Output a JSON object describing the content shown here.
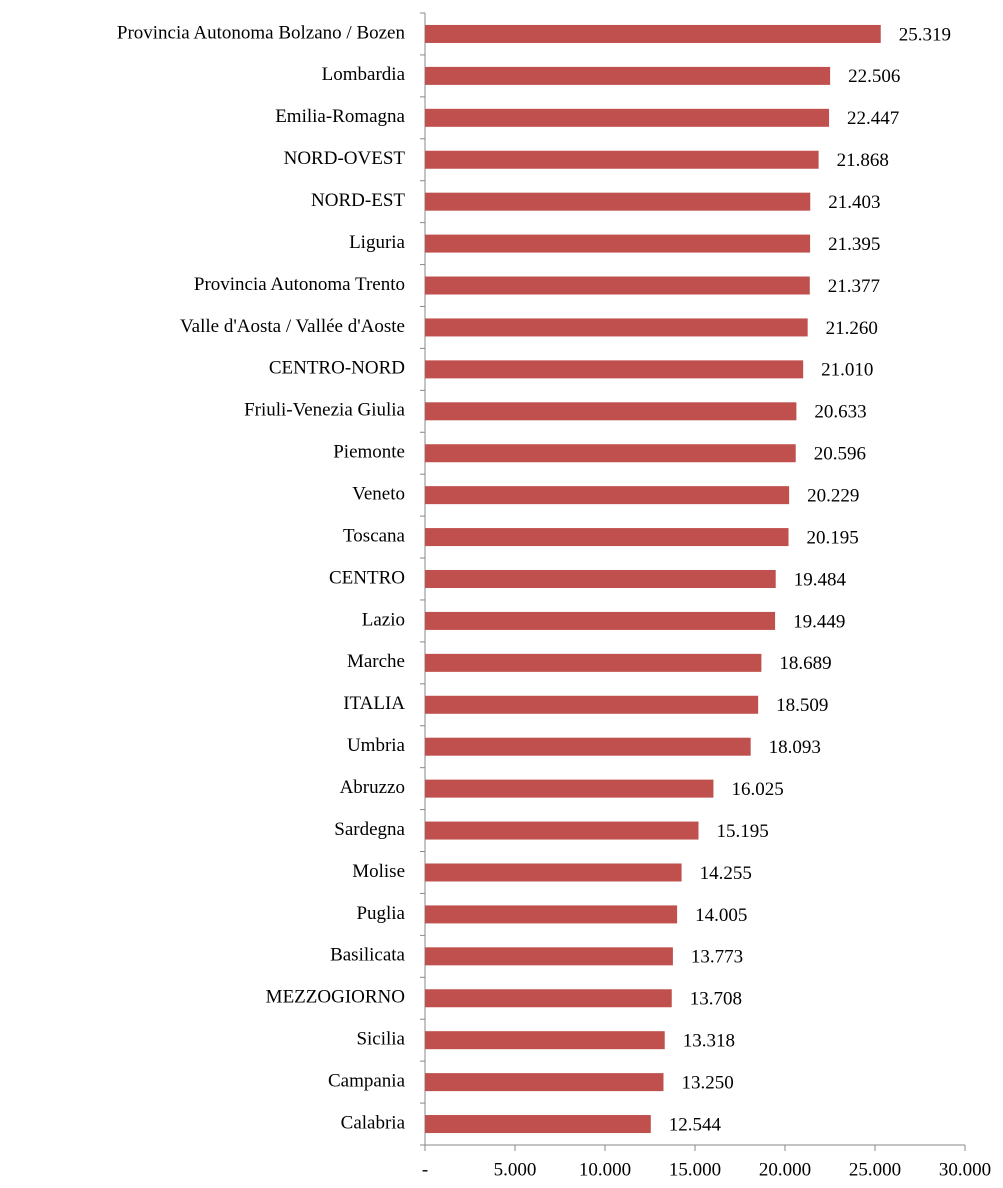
{
  "chart_data": {
    "type": "barh",
    "categories": [
      "Provincia Autonoma Bolzano / Bozen",
      "Lombardia",
      "Emilia-Romagna",
      "NORD-OVEST",
      "NORD-EST",
      "Liguria",
      "Provincia Autonoma Trento",
      "Valle d'Aosta / Vallée d'Aoste",
      "CENTRO-NORD",
      "Friuli-Venezia Giulia",
      "Piemonte",
      "Veneto",
      "Toscana",
      "CENTRO",
      "Lazio",
      "Marche",
      "ITALIA",
      "Umbria",
      "Abruzzo",
      "Sardegna",
      "Molise",
      "Puglia",
      "Basilicata",
      "MEZZOGIORNO",
      "Sicilia",
      "Campania",
      "Calabria"
    ],
    "values": [
      25319,
      22506,
      22447,
      21868,
      21403,
      21395,
      21377,
      21260,
      21010,
      20633,
      20596,
      20229,
      20195,
      19484,
      19449,
      18689,
      18509,
      18093,
      16025,
      15195,
      14255,
      14005,
      13773,
      13708,
      13318,
      13250,
      12544
    ],
    "value_labels": [
      "25.319",
      "22.506",
      "22.447",
      "21.868",
      "21.403",
      "21.395",
      "21.377",
      "21.260",
      "21.010",
      "20.633",
      "20.596",
      "20.229",
      "20.195",
      "19.484",
      "19.449",
      "18.689",
      "18.509",
      "18.093",
      "16.025",
      "15.195",
      "14.255",
      "14.005",
      "13.773",
      "13.708",
      "13.318",
      "13.250",
      "12.544"
    ],
    "color": "#c0504d",
    "xlim": [
      0,
      30000
    ],
    "xticks": [
      {
        "value": 0,
        "label": "-"
      },
      {
        "value": 5000,
        "label": "5.000"
      },
      {
        "value": 10000,
        "label": "10.000"
      },
      {
        "value": 15000,
        "label": "15.000"
      },
      {
        "value": 20000,
        "label": "20.000"
      },
      {
        "value": 25000,
        "label": "25.000"
      },
      {
        "value": 30000,
        "label": "30.000"
      }
    ],
    "grid": false
  }
}
